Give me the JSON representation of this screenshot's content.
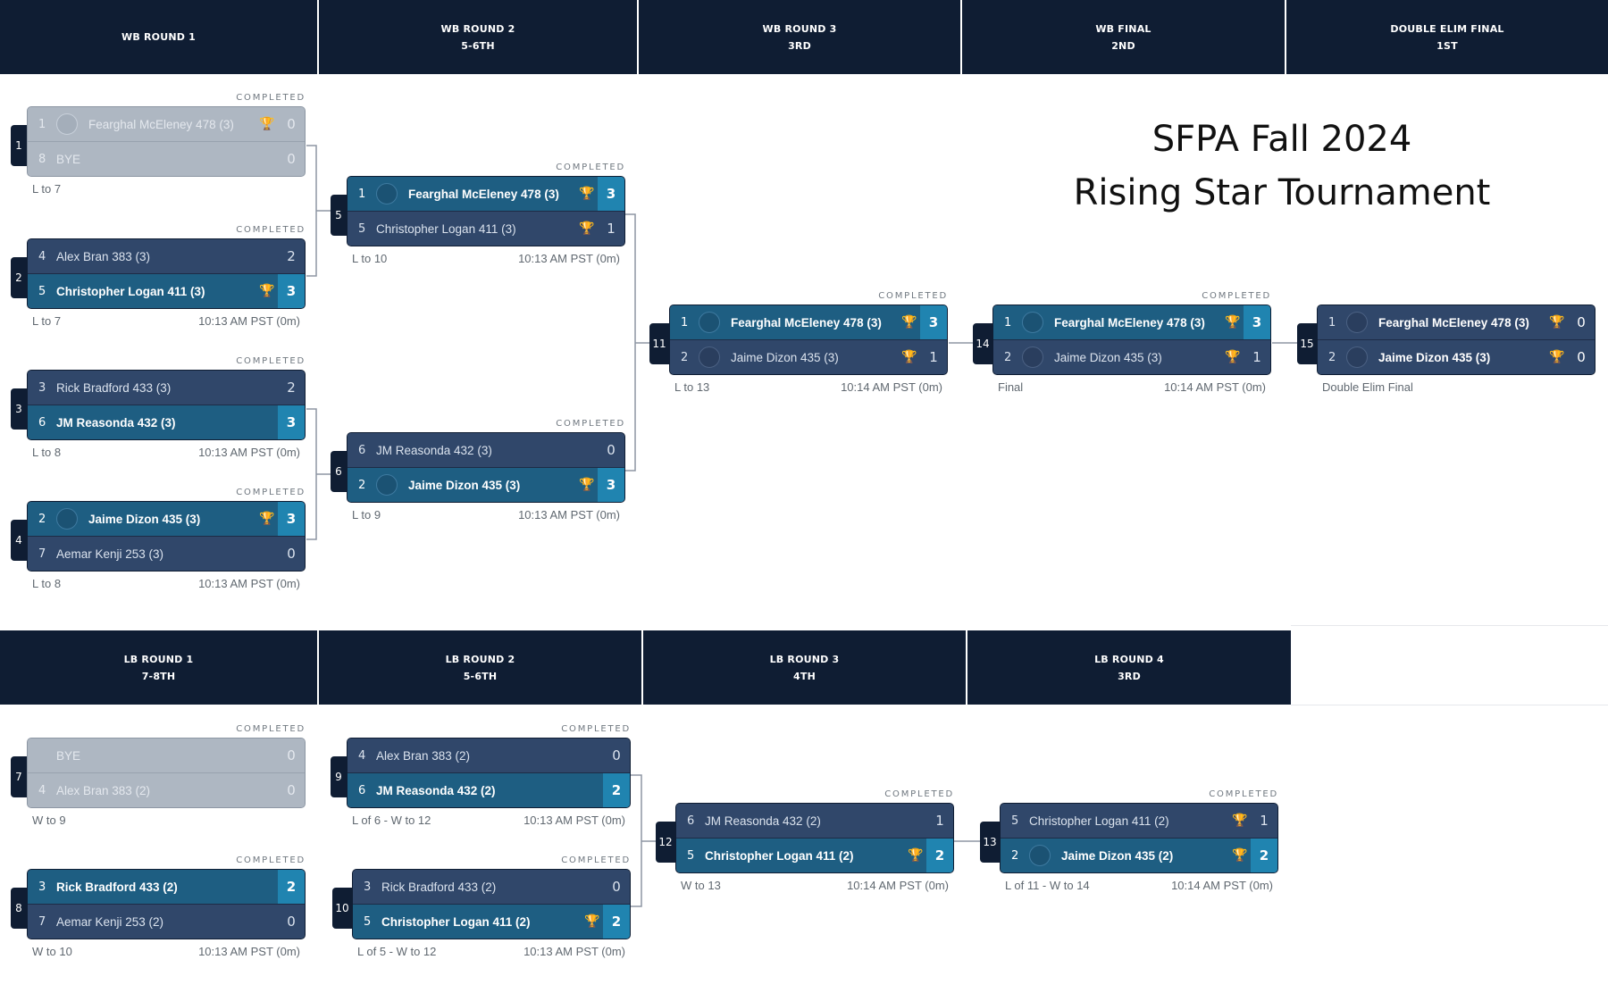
{
  "title_line1": "SFPA Fall 2024",
  "title_line2": "Rising Star Tournament",
  "wb_headers": [
    {
      "line1": "WB ROUND 1",
      "line2": ""
    },
    {
      "line1": "WB ROUND 2",
      "line2": "5-6TH"
    },
    {
      "line1": "WB ROUND 3",
      "line2": "3RD"
    },
    {
      "line1": "WB FINAL",
      "line2": "2ND"
    },
    {
      "line1": "DOUBLE ELIM FINAL",
      "line2": "1ST"
    }
  ],
  "lb_headers": [
    {
      "line1": "LB ROUND 1",
      "line2": "7-8TH"
    },
    {
      "line1": "LB ROUND 2",
      "line2": "5-6TH"
    },
    {
      "line1": "LB ROUND 3",
      "line2": "4TH"
    },
    {
      "line1": "LB ROUND 4",
      "line2": "3RD"
    }
  ],
  "matches": [
    {
      "id": "m1",
      "number": "1",
      "status": "COMPLETED",
      "bye": true,
      "p1": {
        "seed": "1",
        "name": "Fearghal McEleney 478 (3)",
        "avatar": true,
        "trophy": "gold",
        "score": "0"
      },
      "p2": {
        "seed": "8",
        "name": "BYE",
        "avatar": false,
        "trophy": "",
        "score": "0"
      },
      "footer_left": "L to 7",
      "footer_right": ""
    },
    {
      "id": "m2",
      "number": "2",
      "status": "COMPLETED",
      "bye": false,
      "p1": {
        "seed": "4",
        "name": "Alex Bran 383 (3)",
        "avatar": false,
        "trophy": "",
        "score": "2"
      },
      "p2": {
        "seed": "5",
        "name": "Christopher Logan 411 (3)",
        "avatar": false,
        "trophy": "gold",
        "score": "3",
        "win": true
      },
      "footer_left": "L to 7",
      "footer_right": "10:13 AM PST (0m)"
    },
    {
      "id": "m3",
      "number": "3",
      "status": "COMPLETED",
      "bye": false,
      "p1": {
        "seed": "3",
        "name": "Rick Bradford 433 (3)",
        "avatar": false,
        "trophy": "",
        "score": "2"
      },
      "p2": {
        "seed": "6",
        "name": "JM Reasonda 432 (3)",
        "avatar": false,
        "trophy": "",
        "score": "3",
        "win": true
      },
      "footer_left": "L to 8",
      "footer_right": "10:13 AM PST (0m)"
    },
    {
      "id": "m4",
      "number": "4",
      "status": "COMPLETED",
      "bye": false,
      "p1": {
        "seed": "2",
        "name": "Jaime Dizon 435 (3)",
        "avatar": true,
        "trophy": "silver",
        "score": "3",
        "win": true
      },
      "p2": {
        "seed": "7",
        "name": "Aemar Kenji 253 (3)",
        "avatar": false,
        "trophy": "",
        "score": "0"
      },
      "footer_left": "L to 8",
      "footer_right": "10:13 AM PST (0m)"
    },
    {
      "id": "m5",
      "number": "5",
      "status": "COMPLETED",
      "bye": false,
      "p1": {
        "seed": "1",
        "name": "Fearghal McEleney 478 (3)",
        "avatar": true,
        "trophy": "gold",
        "score": "3",
        "win": true
      },
      "p2": {
        "seed": "5",
        "name": "Christopher Logan 411 (3)",
        "avatar": false,
        "trophy": "gold",
        "score": "1"
      },
      "footer_left": "L to 10",
      "footer_right": "10:13 AM PST (0m)"
    },
    {
      "id": "m6",
      "number": "6",
      "status": "COMPLETED",
      "bye": false,
      "p1": {
        "seed": "6",
        "name": "JM Reasonda 432 (3)",
        "avatar": false,
        "trophy": "",
        "score": "0"
      },
      "p2": {
        "seed": "2",
        "name": "Jaime Dizon 435 (3)",
        "avatar": true,
        "trophy": "silver",
        "score": "3",
        "win": true
      },
      "footer_left": "L to 9",
      "footer_right": "10:13 AM PST (0m)"
    },
    {
      "id": "m11",
      "number": "11",
      "status": "COMPLETED",
      "bye": false,
      "p1": {
        "seed": "1",
        "name": "Fearghal McEleney 478 (3)",
        "avatar": true,
        "trophy": "gold",
        "score": "3",
        "win": true
      },
      "p2": {
        "seed": "2",
        "name": "Jaime Dizon 435 (3)",
        "avatar": true,
        "trophy": "silver",
        "score": "1"
      },
      "footer_left": "L to 13",
      "footer_right": "10:14 AM PST (0m)"
    },
    {
      "id": "m14",
      "number": "14",
      "status": "COMPLETED",
      "bye": false,
      "p1": {
        "seed": "1",
        "name": "Fearghal McEleney 478 (3)",
        "avatar": true,
        "trophy": "gold",
        "score": "3",
        "win": true
      },
      "p2": {
        "seed": "2",
        "name": "Jaime Dizon 435 (3)",
        "avatar": true,
        "trophy": "silver",
        "score": "1"
      },
      "footer_left": "Final",
      "footer_right": "10:14 AM PST (0m)"
    },
    {
      "id": "m15",
      "number": "15",
      "status": "",
      "bye": false,
      "p1": {
        "seed": "1",
        "name": "Fearghal McEleney 478 (3)",
        "avatar": true,
        "trophy": "gold",
        "score": "0"
      },
      "p2": {
        "seed": "2",
        "name": "Jaime Dizon 435 (3)",
        "avatar": true,
        "trophy": "silver",
        "score": "0"
      },
      "footer_left": "Double Elim Final",
      "footer_right": ""
    },
    {
      "id": "m7",
      "number": "7",
      "status": "COMPLETED",
      "bye": true,
      "p1": {
        "seed": "",
        "name": "BYE",
        "avatar": false,
        "trophy": "",
        "score": "0"
      },
      "p2": {
        "seed": "4",
        "name": "Alex Bran 383 (2)",
        "avatar": false,
        "trophy": "",
        "score": "0"
      },
      "footer_left": "W to 9",
      "footer_right": ""
    },
    {
      "id": "m8",
      "number": "8",
      "status": "COMPLETED",
      "bye": false,
      "p1": {
        "seed": "3",
        "name": "Rick Bradford 433 (2)",
        "avatar": false,
        "trophy": "",
        "score": "2",
        "win": true
      },
      "p2": {
        "seed": "7",
        "name": "Aemar Kenji 253 (2)",
        "avatar": false,
        "trophy": "",
        "score": "0"
      },
      "footer_left": "W to 10",
      "footer_right": "10:13 AM PST (0m)"
    },
    {
      "id": "m9",
      "number": "9",
      "status": "COMPLETED",
      "bye": false,
      "p1": {
        "seed": "4",
        "name": "Alex Bran 383 (2)",
        "avatar": false,
        "trophy": "",
        "score": "0"
      },
      "p2": {
        "seed": "6",
        "name": "JM Reasonda 432 (2)",
        "avatar": false,
        "trophy": "",
        "score": "2",
        "win": true
      },
      "footer_left": "L of 6 - W to 12",
      "footer_right": "10:13 AM PST (0m)"
    },
    {
      "id": "m10",
      "number": "10",
      "status": "COMPLETED",
      "bye": false,
      "p1": {
        "seed": "3",
        "name": "Rick Bradford 433 (2)",
        "avatar": false,
        "trophy": "",
        "score": "0"
      },
      "p2": {
        "seed": "5",
        "name": "Christopher Logan 411 (2)",
        "avatar": false,
        "trophy": "gold",
        "score": "2",
        "win": true
      },
      "footer_left": "L of 5 - W to 12",
      "footer_right": "10:13 AM PST (0m)"
    },
    {
      "id": "m12",
      "number": "12",
      "status": "COMPLETED",
      "bye": false,
      "p1": {
        "seed": "6",
        "name": "JM Reasonda 432 (2)",
        "avatar": false,
        "trophy": "",
        "score": "1"
      },
      "p2": {
        "seed": "5",
        "name": "Christopher Logan 411 (2)",
        "avatar": false,
        "trophy": "gold",
        "score": "2",
        "win": true
      },
      "footer_left": "W to 13",
      "footer_right": "10:14 AM PST (0m)"
    },
    {
      "id": "m13",
      "number": "13",
      "status": "COMPLETED",
      "bye": false,
      "p1": {
        "seed": "5",
        "name": "Christopher Logan 411 (2)",
        "avatar": false,
        "trophy": "gold",
        "score": "1"
      },
      "p2": {
        "seed": "2",
        "name": "Jaime Dizon 435 (2)",
        "avatar": true,
        "trophy": "silver",
        "score": "2",
        "win": true
      },
      "footer_left": "L of 11 - W to 14",
      "footer_right": "10:14 AM PST (0m)"
    }
  ],
  "colors": {
    "header_bg": "#0f1d33",
    "row_bg": "#30476a",
    "winner_bg": "#1e5e82",
    "score_accent": "#2084b0",
    "trophy_gold": "#e6b325",
    "trophy_silver": "#b8c2d0",
    "bye_bg": "#aeb7c2"
  },
  "icons": {
    "trophy": "trophy-icon",
    "avatar": "player-avatar-icon"
  }
}
